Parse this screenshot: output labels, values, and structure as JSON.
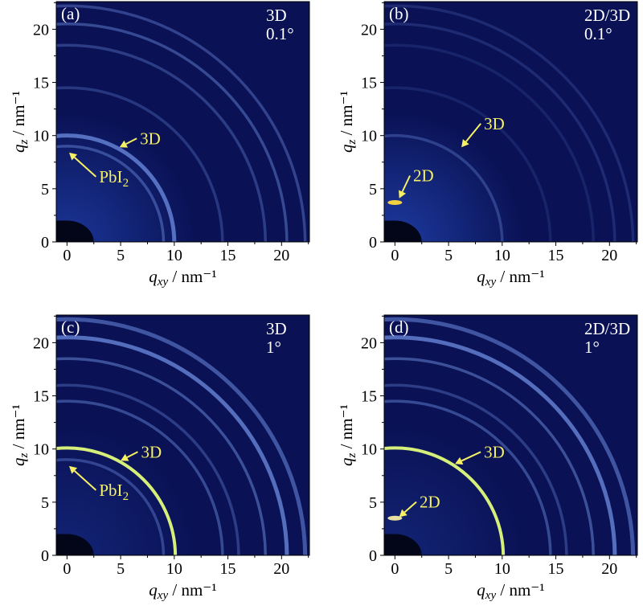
{
  "chart_data": {
    "type": "heatmap",
    "description_units": "nm^-1",
    "xlim": [
      -1,
      22.6
    ],
    "ylim": [
      0,
      22.6
    ],
    "xticks": [
      "0",
      "5",
      "10",
      "15",
      "20"
    ],
    "yticks": [
      "0",
      "5",
      "10",
      "15",
      "20"
    ],
    "xlabel": {
      "var": "q",
      "sub": "xy",
      "unit": " / nm⁻¹"
    },
    "ylabel": {
      "var": "q",
      "sub": "z",
      "unit": " / nm⁻¹"
    },
    "colors": {
      "background": "#0a1255",
      "glow": "#1f3fa8",
      "ring": "#6d8de0",
      "bright_ring": "#d6ef7a",
      "annotation": "#f5f064",
      "text": "#ffffff"
    },
    "panels": [
      {
        "label": "(a)",
        "sample": "3D",
        "angle": "0.1°",
        "glow": 0.8,
        "rings": [
          {
            "q": 9.0,
            "i": 0.45
          },
          {
            "q": 10.0,
            "i": 0.75
          },
          {
            "q": 14.5,
            "i": 0.3
          },
          {
            "q": 18.5,
            "i": 0.35
          },
          {
            "q": 20.5,
            "i": 0.45
          },
          {
            "q": 22.2,
            "i": 0.4
          }
        ],
        "spot": null,
        "annotations": [
          {
            "text": "3D",
            "sub": "",
            "at": [
              6.8,
              9.2
            ],
            "tip": [
              4.9,
              8.9
            ]
          },
          {
            "text": "PbI",
            "sub": "2",
            "at": [
              3.0,
              5.6
            ],
            "tip": [
              0.2,
              8.4
            ]
          }
        ]
      },
      {
        "label": "(b)",
        "sample": "2D/3D",
        "angle": "0.1°",
        "glow": 0.9,
        "rings": [
          {
            "q": 10.0,
            "i": 0.35
          },
          {
            "q": 14.5,
            "i": 0.15
          },
          {
            "q": 18.5,
            "i": 0.15
          },
          {
            "q": 20.5,
            "i": 0.2
          },
          {
            "q": 22.2,
            "i": 0.2
          }
        ],
        "spot": {
          "q": [
            0,
            3.7
          ],
          "color": "#f2d040"
        },
        "annotations": [
          {
            "text": "3D",
            "sub": "",
            "at": [
              8.3,
              10.6
            ],
            "tip": [
              6.2,
              8.9
            ]
          },
          {
            "text": "2D",
            "sub": "",
            "at": [
              1.7,
              5.7
            ],
            "tip": [
              0.4,
              4.1
            ]
          }
        ]
      },
      {
        "label": "(c)",
        "sample": "3D",
        "angle": "1°",
        "glow": 0.4,
        "rings": [
          {
            "q": 9.0,
            "i": 0.4
          },
          {
            "q": 10.1,
            "i": 1.0,
            "bright": true
          },
          {
            "q": 14.5,
            "i": 0.45
          },
          {
            "q": 16.0,
            "i": 0.35
          },
          {
            "q": 18.5,
            "i": 0.5
          },
          {
            "q": 20.5,
            "i": 0.75
          },
          {
            "q": 22.2,
            "i": 0.55
          }
        ],
        "spot": null,
        "annotations": [
          {
            "text": "3D",
            "sub": "",
            "at": [
              6.9,
              9.2
            ],
            "tip": [
              5.0,
              8.9
            ]
          },
          {
            "text": "PbI",
            "sub": "2",
            "at": [
              3.0,
              5.6
            ],
            "tip": [
              0.2,
              8.4
            ]
          }
        ]
      },
      {
        "label": "(d)",
        "sample": "2D/3D",
        "angle": "1°",
        "glow": 0.4,
        "rings": [
          {
            "q": 10.1,
            "i": 1.0,
            "bright": true
          },
          {
            "q": 14.5,
            "i": 0.45
          },
          {
            "q": 16.0,
            "i": 0.35
          },
          {
            "q": 18.5,
            "i": 0.5
          },
          {
            "q": 20.5,
            "i": 0.75
          },
          {
            "q": 22.2,
            "i": 0.55
          }
        ],
        "spot": {
          "q": [
            0,
            3.5
          ],
          "color": "#e8e0a0"
        },
        "annotations": [
          {
            "text": "3D",
            "sub": "",
            "at": [
              8.3,
              9.2
            ],
            "tip": [
              5.6,
              8.6
            ]
          },
          {
            "text": "2D",
            "sub": "",
            "at": [
              2.3,
              4.5
            ],
            "tip": [
              0.4,
              3.6
            ]
          }
        ]
      }
    ]
  }
}
